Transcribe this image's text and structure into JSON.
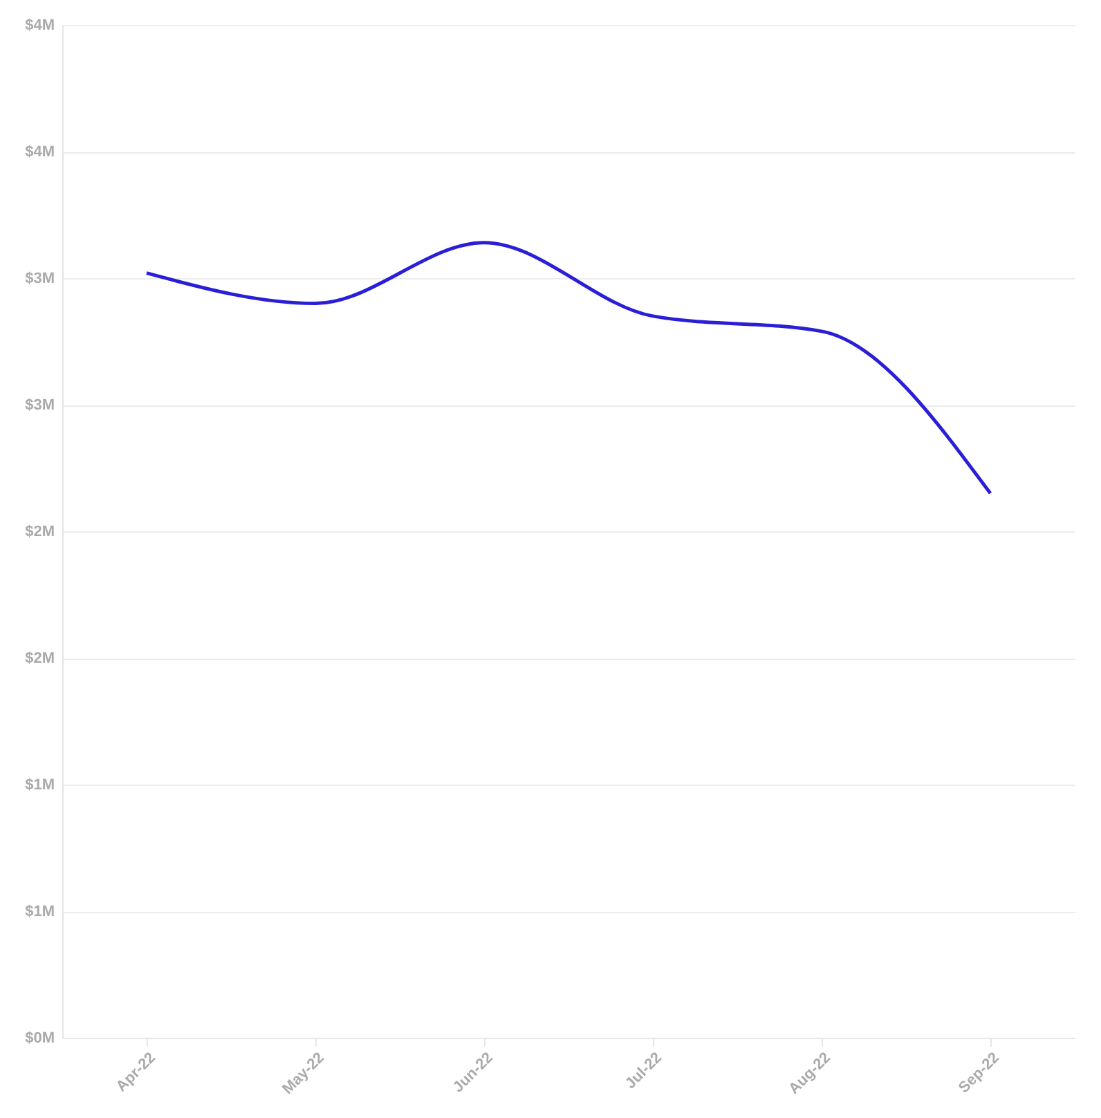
{
  "chart_data": {
    "type": "line",
    "categories": [
      "Apr-22",
      "May-22",
      "Jun-22",
      "Jul-22",
      "Aug-22",
      "Sep-22"
    ],
    "series": [
      {
        "color": "#2a1fd6",
        "values": [
          3.02,
          2.9,
          3.14,
          2.85,
          2.79,
          2.15
        ]
      }
    ],
    "ylim": [
      0,
      4
    ],
    "yticks": [
      {
        "value": 0,
        "label": "$0M"
      },
      {
        "value": 0.5,
        "label": "$1M"
      },
      {
        "value": 1,
        "label": "$1M"
      },
      {
        "value": 1.5,
        "label": "$2M"
      },
      {
        "value": 2,
        "label": "$2M"
      },
      {
        "value": 2.5,
        "label": "$3M"
      },
      {
        "value": 3,
        "label": "$3M"
      },
      {
        "value": 3.5,
        "label": "$4M"
      },
      {
        "value": 4,
        "label": "$4M"
      }
    ],
    "grid": "y",
    "marker": "none",
    "line_style": "solid"
  }
}
